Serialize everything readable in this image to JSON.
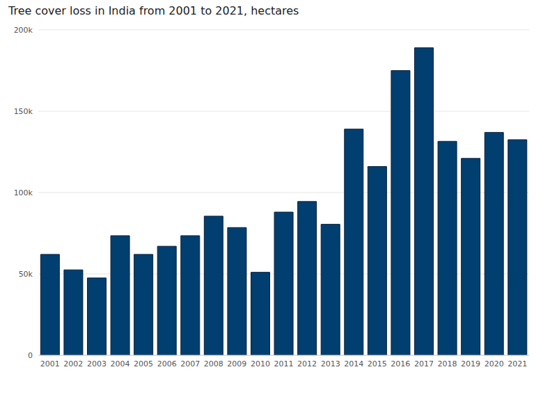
{
  "chart_data": {
    "type": "bar",
    "title": "Tree cover loss in India from 2001 to 2021, hectares",
    "categories": [
      "2001",
      "2002",
      "2003",
      "2004",
      "2005",
      "2006",
      "2007",
      "2008",
      "2009",
      "2010",
      "2011",
      "2012",
      "2013",
      "2014",
      "2015",
      "2016",
      "2017",
      "2018",
      "2019",
      "2020",
      "2021"
    ],
    "values": [
      62000,
      52500,
      47500,
      73500,
      62000,
      67000,
      73500,
      85500,
      78500,
      51000,
      88000,
      94500,
      80500,
      139000,
      116000,
      175000,
      189000,
      131500,
      121000,
      137000,
      132500
    ],
    "color": "#003f6f",
    "ylim": [
      0,
      200000
    ],
    "yticks": [
      0,
      {
        "value": 50000,
        "label": "50k"
      },
      {
        "value": 100000,
        "label": "100k"
      },
      {
        "value": 150000,
        "label": "150k"
      },
      {
        "value": 200000,
        "label": "200k"
      }
    ],
    "grid": true
  }
}
